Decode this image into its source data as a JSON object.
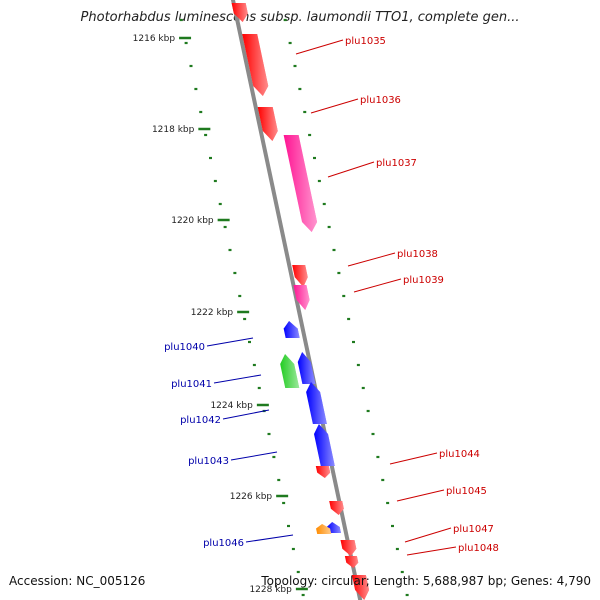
{
  "title": "Photorhabdus luminescens subsp. laumondii TTO1, complete gen...",
  "footer": {
    "accession": "Accession: NC_005126",
    "summary": "Topology: circular; Length: 5,688,987 bp; Genes: 4,790"
  },
  "colors": {
    "backbone": "#8a8a8a",
    "tick": "#1f7a1f",
    "forward_label": "#cc0000",
    "reverse_label": "#0000aa",
    "forward_cds": "#ff0000",
    "forward_other": "#ff1493",
    "reverse_cds": "#0000ff",
    "reverse_other": "#22cc22",
    "reverse_misc": "#ff8c00"
  },
  "ticks": [
    "1216 kbp",
    "1218 kbp",
    "1220 kbp",
    "1222 kbp",
    "1224 kbp",
    "1226 kbp",
    "1228 kbp"
  ],
  "genes": [
    {
      "label": "plu1035",
      "strand": "forward",
      "color": "#ff0000"
    },
    {
      "label": "plu1036",
      "strand": "forward",
      "color": "#ff0000"
    },
    {
      "label": "plu1037",
      "strand": "forward",
      "color": "#ff1493"
    },
    {
      "label": "plu1038",
      "strand": "forward",
      "color": "#ff0000"
    },
    {
      "label": "plu1039",
      "strand": "forward",
      "color": "#ff1493"
    },
    {
      "label": "plu1040",
      "strand": "reverse",
      "color": "#0000ff"
    },
    {
      "label": "plu1041",
      "strand": "reverse",
      "color": "#22cc22"
    },
    {
      "label": "plu1042",
      "strand": "reverse",
      "color": "#0000ff"
    },
    {
      "label": "plu1043",
      "strand": "reverse",
      "color": "#0000ff"
    },
    {
      "label": "plu1044",
      "strand": "forward",
      "color": "#ff0000"
    },
    {
      "label": "plu1045",
      "strand": "forward",
      "color": "#ff0000"
    },
    {
      "label": "plu1046",
      "strand": "reverse",
      "color": "#0000ff"
    },
    {
      "label": "plu1047",
      "strand": "forward",
      "color": "#ff0000"
    },
    {
      "label": "plu1048",
      "strand": "forward",
      "color": "#ff0000"
    }
  ]
}
